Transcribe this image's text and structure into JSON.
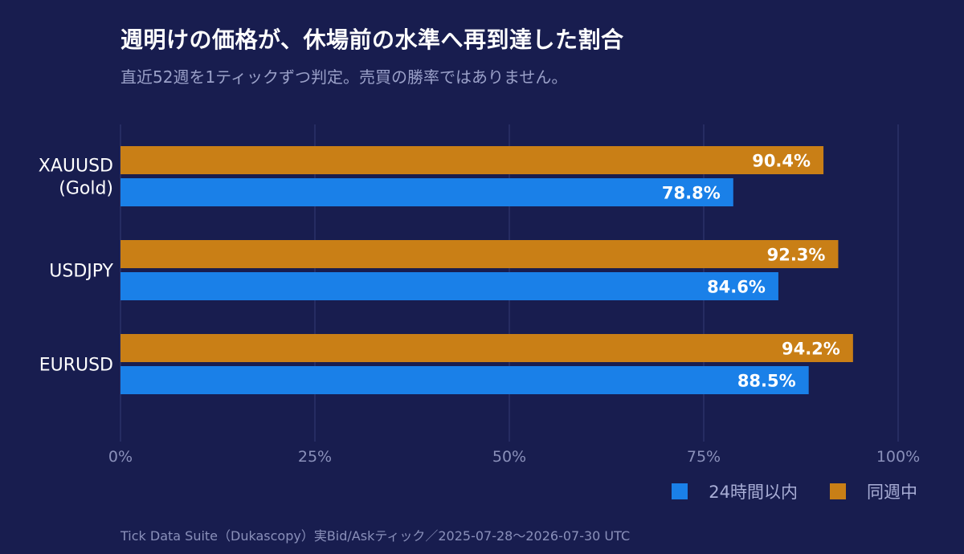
{
  "title": "週明けの価格が、休場前の水準へ再到達した割合",
  "subtitle": "直近52週を1ティックずつ判定。売買の勝率ではありません。",
  "footer": "Tick Data Suite（Dukascopy）実Bid/Askティック／2025-07-28〜2026-07-30 UTC",
  "legend": [
    {
      "label": "24時間以内",
      "color": "#1a80e8"
    },
    {
      "label": "同週中",
      "color": "#c97f16"
    }
  ],
  "chart_data": {
    "type": "bar",
    "orientation": "horizontal",
    "categories": [
      [
        "XAUUSD",
        "(Gold)"
      ],
      [
        "USDJPY"
      ],
      [
        "EURUSD"
      ]
    ],
    "series": [
      {
        "name": "同週中",
        "color": "#c97f16",
        "values": [
          90.4,
          92.3,
          94.2
        ],
        "labels": [
          "90.4%",
          "92.3%",
          "94.2%"
        ]
      },
      {
        "name": "24時間以内",
        "color": "#1a80e8",
        "values": [
          78.8,
          84.6,
          88.5
        ],
        "labels": [
          "78.8%",
          "84.6%",
          "88.5%"
        ]
      }
    ],
    "xlim": [
      0,
      100
    ],
    "xticks": [
      0,
      25,
      50,
      75,
      100
    ],
    "xtick_labels": [
      "0%",
      "25%",
      "50%",
      "75%",
      "100%"
    ],
    "grid": true,
    "legend_position": "bottom-right"
  }
}
